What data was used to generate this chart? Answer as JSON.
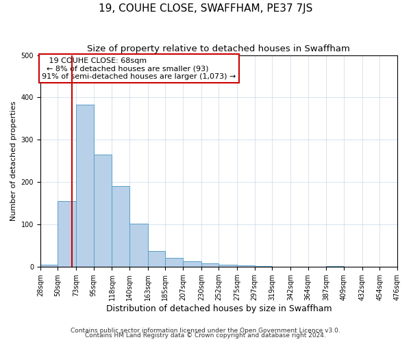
{
  "title": "19, COUHE CLOSE, SWAFFHAM, PE37 7JS",
  "subtitle": "Size of property relative to detached houses in Swaffham",
  "xlabel": "Distribution of detached houses by size in Swaffham",
  "ylabel": "Number of detached properties",
  "footer_line1": "Contains HM Land Registry data © Crown copyright and database right 2024.",
  "footer_line2": "Contains public sector information licensed under the Open Government Licence v3.0.",
  "bin_edges": [
    28,
    50,
    73,
    95,
    118,
    140,
    163,
    185,
    207,
    230,
    252,
    275,
    297,
    319,
    342,
    364,
    387,
    409,
    432,
    454,
    476
  ],
  "bin_labels": [
    "28sqm",
    "50sqm",
    "73sqm",
    "95sqm",
    "118sqm",
    "140sqm",
    "163sqm",
    "185sqm",
    "207sqm",
    "230sqm",
    "252sqm",
    "275sqm",
    "297sqm",
    "319sqm",
    "342sqm",
    "364sqm",
    "387sqm",
    "409sqm",
    "432sqm",
    "454sqm",
    "476sqm"
  ],
  "counts": [
    5,
    155,
    383,
    265,
    190,
    102,
    36,
    20,
    12,
    8,
    5,
    2,
    1,
    0,
    0,
    0,
    1,
    0,
    0,
    0
  ],
  "bar_color": "#b8d0e8",
  "bar_edge_color": "#5a9ec8",
  "property_value": 68,
  "vline_color": "#cc0000",
  "annotation_line1": "   19 COUHE CLOSE: 68sqm",
  "annotation_line2": "  ← 8% of detached houses are smaller (93)",
  "annotation_line3": "91% of semi-detached houses are larger (1,073) →",
  "annotation_box_color": "#ffffff",
  "annotation_box_edge": "#cc0000",
  "ylim": [
    0,
    500
  ],
  "xlim_min": 28,
  "xlim_max": 476,
  "grid_color": "#c8d8e8",
  "background_color": "#ffffff",
  "title_fontsize": 11,
  "subtitle_fontsize": 9.5,
  "xlabel_fontsize": 9,
  "ylabel_fontsize": 8,
  "tick_fontsize": 7,
  "annot_fontsize": 8,
  "footer_fontsize": 6.5
}
